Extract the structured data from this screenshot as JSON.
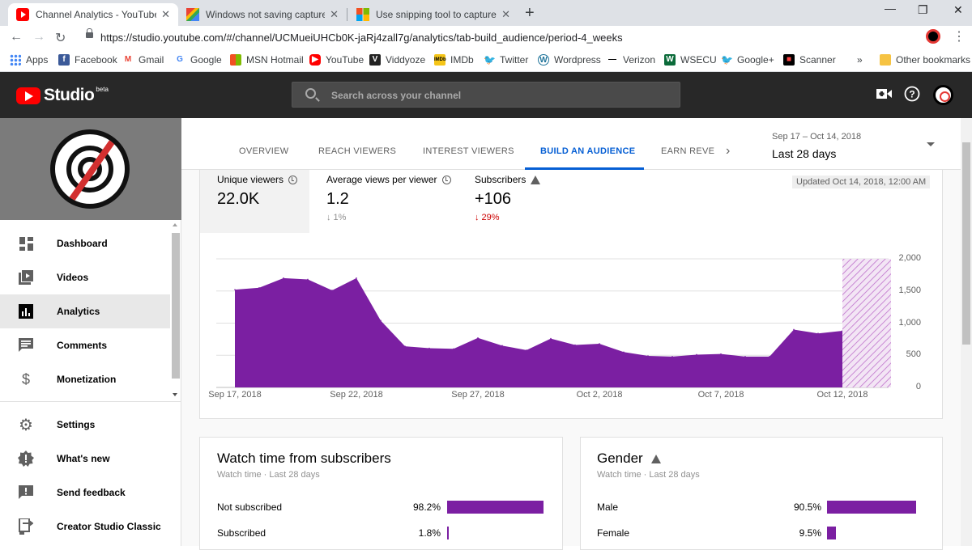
{
  "browser": {
    "tabs": [
      {
        "title": "Channel Analytics - YouTube Stu",
        "favicon": "youtube-icon"
      },
      {
        "title": "Windows not saving captured Sc",
        "favicon": "gmail-icon"
      },
      {
        "title": "Use snipping tool to capture scre",
        "favicon": "microsoft-icon"
      }
    ],
    "url": "https://studio.youtube.com/#/channel/UCMueiUHCb0K-jaRj4zall7g/analytics/tab-build_audience/period-4_weeks"
  },
  "bookmarks": {
    "items": [
      "Apps",
      "Facebook",
      "Gmail",
      "Google",
      "MSN Hotmail",
      "YouTube",
      "Viddyoze",
      "IMDb",
      "Twitter",
      "Wordpress",
      "Verizon",
      "WSECU",
      "Google+",
      "Scanner"
    ],
    "overflow": "»",
    "other": "Other bookmarks"
  },
  "header": {
    "logo": "Studio",
    "beta": "beta",
    "search_placeholder": "Search across your channel"
  },
  "sidebar": {
    "items": [
      {
        "label": "Dashboard",
        "icon": "dashboard-icon"
      },
      {
        "label": "Videos",
        "icon": "videos-icon"
      },
      {
        "label": "Analytics",
        "icon": "analytics-icon",
        "selected": true
      },
      {
        "label": "Comments",
        "icon": "comments-icon"
      },
      {
        "label": "Monetization",
        "icon": "dollar-icon"
      },
      {
        "label": "Settings",
        "icon": "gear-icon"
      },
      {
        "label": "What's new",
        "icon": "whats-new-icon"
      },
      {
        "label": "Send feedback",
        "icon": "feedback-icon"
      },
      {
        "label": "Creator Studio Classic",
        "icon": "classic-studio-icon"
      }
    ]
  },
  "analytics": {
    "tabs": [
      "OVERVIEW",
      "REACH VIEWERS",
      "INTEREST VIEWERS",
      "BUILD AN AUDIENCE",
      "EARN REVE"
    ],
    "active_tab": "BUILD AN AUDIENCE",
    "date_range": "Sep 17 – Oct 14, 2018",
    "period": "Last 28 days",
    "updated": "Updated Oct 14, 2018, 12:00 AM",
    "metrics": [
      {
        "label": "Unique viewers",
        "value": "22.0K",
        "delta": ""
      },
      {
        "label": "Average views per viewer",
        "value": "1.2",
        "delta": "↓ 1%"
      },
      {
        "label": "Subscribers",
        "value": "+106",
        "delta": "↓ 29%"
      }
    ]
  },
  "chart_data": {
    "type": "area",
    "x": [
      "Sep 17",
      "Sep 18",
      "Sep 19",
      "Sep 20",
      "Sep 21",
      "Sep 22",
      "Sep 23",
      "Sep 24",
      "Sep 25",
      "Sep 26",
      "Sep 27",
      "Sep 28",
      "Sep 29",
      "Sep 30",
      "Oct 1",
      "Oct 2",
      "Oct 3",
      "Oct 4",
      "Oct 5",
      "Oct 6",
      "Oct 7",
      "Oct 8",
      "Oct 9",
      "Oct 10",
      "Oct 11",
      "Oct 12"
    ],
    "values": [
      1520,
      1550,
      1700,
      1680,
      1510,
      1700,
      1040,
      640,
      610,
      600,
      770,
      650,
      580,
      760,
      660,
      680,
      550,
      490,
      480,
      510,
      520,
      480,
      480,
      900,
      840,
      880
    ],
    "projected_x": "Oct 13–14",
    "x_tick_labels": [
      "Sep 17, 2018",
      "Sep 22, 2018",
      "Sep 27, 2018",
      "Oct 2, 2018",
      "Oct 7, 2018",
      "Oct 12, 2018"
    ],
    "y_tick_labels": [
      "2,000",
      "1,500",
      "1,000",
      "500",
      "0"
    ],
    "ylim": [
      0,
      2000
    ],
    "grid": true,
    "color": "#7b1fa2"
  },
  "watch_time": {
    "title": "Watch time from subscribers",
    "subtitle": "Watch time · Last 28 days",
    "rows": [
      {
        "label": "Not subscribed",
        "pct": "98.2%",
        "value": 98.2
      },
      {
        "label": "Subscribed",
        "pct": "1.8%",
        "value": 1.8
      }
    ]
  },
  "gender": {
    "title": "Gender",
    "subtitle": "Watch time · Last 28 days",
    "rows": [
      {
        "label": "Male",
        "pct": "90.5%",
        "value": 90.5
      },
      {
        "label": "Female",
        "pct": "9.5%",
        "value": 9.5
      }
    ]
  },
  "colors": {
    "accent": "#065fd4",
    "bar": "#7b1fa2",
    "negative": "#cc0000",
    "header": "#282828"
  }
}
